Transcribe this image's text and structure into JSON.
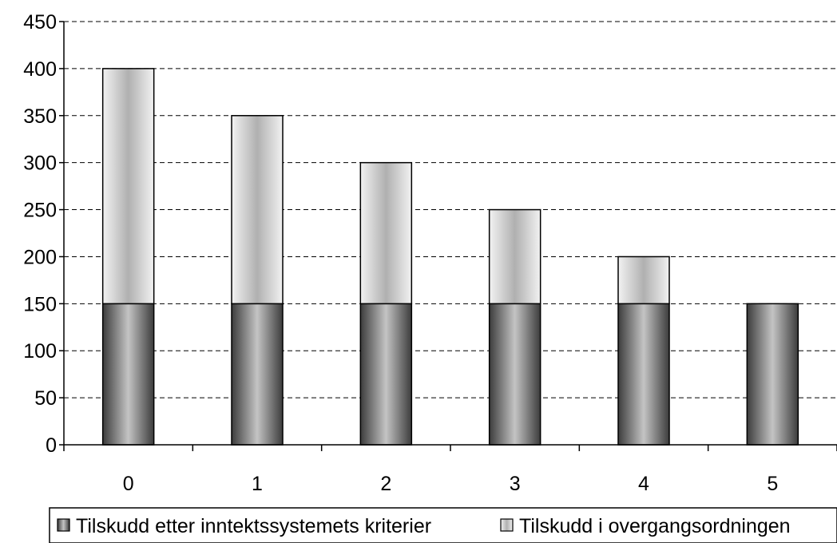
{
  "chart_data": {
    "type": "bar",
    "stacked": true,
    "categories": [
      "0",
      "1",
      "2",
      "3",
      "4",
      "5"
    ],
    "series": [
      {
        "name": "Tilskudd etter inntektssystemets kriterier",
        "values": [
          150,
          150,
          150,
          150,
          150,
          150
        ],
        "color": "#6a6a6a"
      },
      {
        "name": "Tilskudd i overgangsordningen",
        "values": [
          250,
          200,
          150,
          100,
          50,
          0
        ],
        "color": "#dcdcdc"
      }
    ],
    "title": "",
    "xlabel": "",
    "ylabel": "",
    "ylim": [
      0,
      450
    ],
    "yticks": [
      0,
      50,
      100,
      150,
      200,
      250,
      300,
      350,
      400,
      450
    ],
    "grid": true,
    "legend_position": "bottom"
  }
}
